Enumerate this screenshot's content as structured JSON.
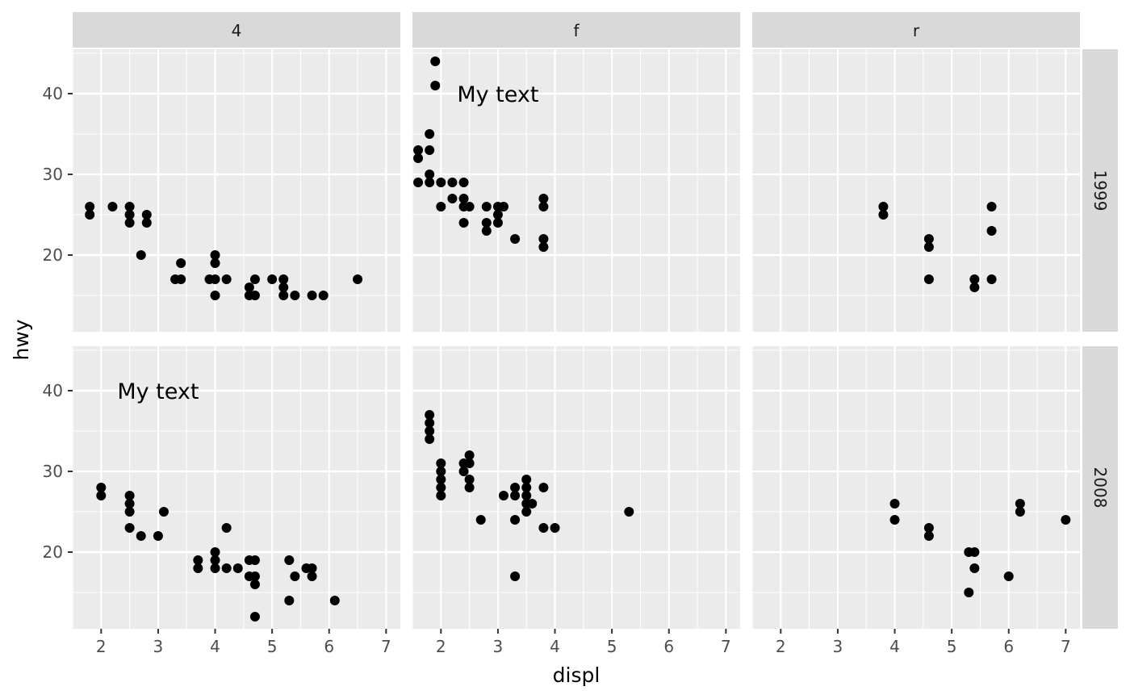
{
  "chart_data": {
    "type": "scatter",
    "xlabel": "displ",
    "ylabel": "hwy",
    "xlim": [
      1.5,
      7.25
    ],
    "ylim": [
      10.5,
      45.5
    ],
    "x_ticks": [
      2,
      3,
      4,
      5,
      6,
      7
    ],
    "y_ticks": [
      20,
      30,
      40
    ],
    "grid": true,
    "legend": "none",
    "facet_columns": [
      "4",
      "f",
      "r"
    ],
    "facet_rows": [
      "1999",
      "2008"
    ],
    "annotation": {
      "text": "My text",
      "x": 3,
      "y": 40
    },
    "panels": [
      {
        "col": "4",
        "row": "1999",
        "points": [
          [
            1.8,
            26
          ],
          [
            1.8,
            25
          ],
          [
            2.2,
            26
          ],
          [
            2.5,
            26
          ],
          [
            2.5,
            25
          ],
          [
            2.5,
            24
          ],
          [
            2.7,
            20
          ],
          [
            2.8,
            25
          ],
          [
            2.8,
            24
          ],
          [
            3.3,
            17
          ],
          [
            3.4,
            19
          ],
          [
            3.4,
            17
          ],
          [
            3.9,
            17
          ],
          [
            4.0,
            20
          ],
          [
            4.0,
            19
          ],
          [
            4.0,
            17
          ],
          [
            4.0,
            15
          ],
          [
            4.2,
            17
          ],
          [
            4.6,
            16
          ],
          [
            4.6,
            15
          ],
          [
            4.7,
            17
          ],
          [
            4.7,
            15
          ],
          [
            5.0,
            17
          ],
          [
            5.2,
            17
          ],
          [
            5.2,
            16
          ],
          [
            5.2,
            15
          ],
          [
            5.4,
            15
          ],
          [
            5.7,
            15
          ],
          [
            5.9,
            15
          ],
          [
            6.5,
            17
          ]
        ]
      },
      {
        "col": "f",
        "row": "1999",
        "points": [
          [
            1.6,
            33
          ],
          [
            1.6,
            32
          ],
          [
            1.6,
            29
          ],
          [
            1.8,
            35
          ],
          [
            1.8,
            33
          ],
          [
            1.8,
            30
          ],
          [
            1.8,
            29
          ],
          [
            1.9,
            44
          ],
          [
            1.9,
            41
          ],
          [
            2.0,
            29
          ],
          [
            2.0,
            26
          ],
          [
            2.2,
            29
          ],
          [
            2.2,
            27
          ],
          [
            2.4,
            29
          ],
          [
            2.4,
            27
          ],
          [
            2.4,
            26
          ],
          [
            2.4,
            24
          ],
          [
            2.5,
            26
          ],
          [
            2.8,
            26
          ],
          [
            2.8,
            24
          ],
          [
            2.8,
            23
          ],
          [
            3.0,
            26
          ],
          [
            3.0,
            25
          ],
          [
            3.0,
            24
          ],
          [
            3.1,
            26
          ],
          [
            3.3,
            22
          ],
          [
            3.8,
            27
          ],
          [
            3.8,
            26
          ],
          [
            3.8,
            22
          ],
          [
            3.8,
            21
          ]
        ]
      },
      {
        "col": "r",
        "row": "1999",
        "points": [
          [
            3.8,
            26
          ],
          [
            3.8,
            25
          ],
          [
            4.6,
            22
          ],
          [
            4.6,
            21
          ],
          [
            4.6,
            17
          ],
          [
            5.4,
            17
          ],
          [
            5.4,
            16
          ],
          [
            5.7,
            26
          ],
          [
            5.7,
            23
          ],
          [
            5.7,
            17
          ]
        ]
      },
      {
        "col": "4",
        "row": "2008",
        "points": [
          [
            2.0,
            28
          ],
          [
            2.0,
            27
          ],
          [
            2.5,
            27
          ],
          [
            2.5,
            26
          ],
          [
            2.5,
            25
          ],
          [
            2.5,
            23
          ],
          [
            2.7,
            22
          ],
          [
            3.0,
            22
          ],
          [
            3.1,
            25
          ],
          [
            3.7,
            19
          ],
          [
            3.7,
            18
          ],
          [
            4.0,
            20
          ],
          [
            4.0,
            19
          ],
          [
            4.0,
            18
          ],
          [
            4.2,
            23
          ],
          [
            4.2,
            18
          ],
          [
            4.4,
            18
          ],
          [
            4.6,
            19
          ],
          [
            4.6,
            17
          ],
          [
            4.7,
            19
          ],
          [
            4.7,
            17
          ],
          [
            4.7,
            16
          ],
          [
            4.7,
            12
          ],
          [
            5.3,
            19
          ],
          [
            5.3,
            14
          ],
          [
            5.4,
            17
          ],
          [
            5.6,
            18
          ],
          [
            5.7,
            18
          ],
          [
            5.7,
            17
          ],
          [
            6.1,
            14
          ]
        ]
      },
      {
        "col": "f",
        "row": "2008",
        "points": [
          [
            1.8,
            37
          ],
          [
            1.8,
            36
          ],
          [
            1.8,
            35
          ],
          [
            1.8,
            34
          ],
          [
            2.0,
            31
          ],
          [
            2.0,
            30
          ],
          [
            2.0,
            29
          ],
          [
            2.0,
            28
          ],
          [
            2.0,
            27
          ],
          [
            2.4,
            31
          ],
          [
            2.4,
            30
          ],
          [
            2.5,
            32
          ],
          [
            2.5,
            31
          ],
          [
            2.5,
            29
          ],
          [
            2.5,
            28
          ],
          [
            2.7,
            24
          ],
          [
            3.1,
            27
          ],
          [
            3.3,
            28
          ],
          [
            3.3,
            27
          ],
          [
            3.3,
            24
          ],
          [
            3.3,
            17
          ],
          [
            3.5,
            29
          ],
          [
            3.5,
            28
          ],
          [
            3.5,
            27
          ],
          [
            3.5,
            26
          ],
          [
            3.5,
            25
          ],
          [
            3.6,
            26
          ],
          [
            3.8,
            28
          ],
          [
            3.8,
            23
          ],
          [
            4.0,
            23
          ],
          [
            5.3,
            25
          ]
        ]
      },
      {
        "col": "r",
        "row": "2008",
        "points": [
          [
            4.0,
            26
          ],
          [
            4.0,
            24
          ],
          [
            4.6,
            23
          ],
          [
            4.6,
            22
          ],
          [
            5.3,
            20
          ],
          [
            5.3,
            15
          ],
          [
            5.4,
            20
          ],
          [
            5.4,
            18
          ],
          [
            6.0,
            17
          ],
          [
            6.2,
            26
          ],
          [
            6.2,
            25
          ],
          [
            7.0,
            24
          ]
        ]
      }
    ]
  }
}
